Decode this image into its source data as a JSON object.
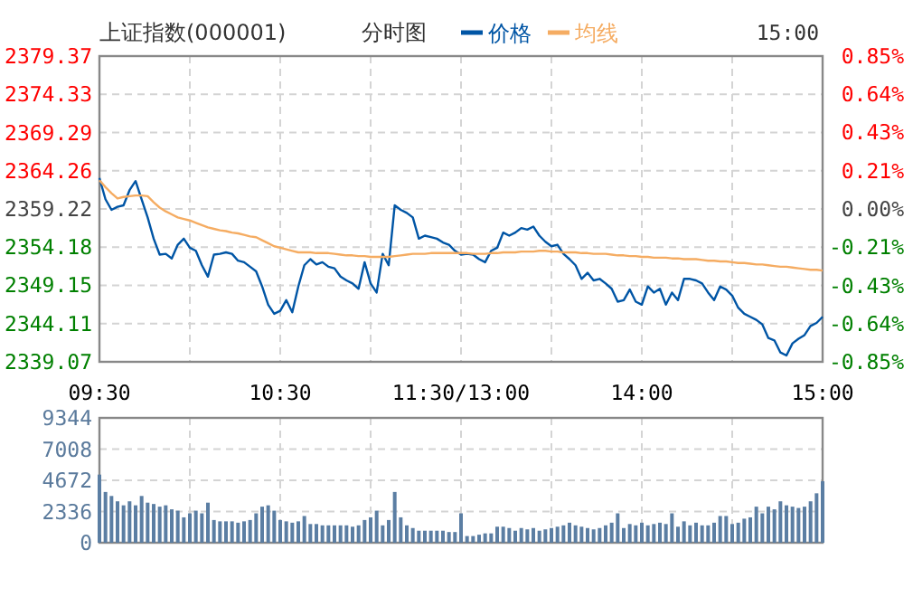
{
  "chart_data": [
    {
      "type": "line",
      "title": "上证指数(000001)",
      "subtitle": "分时图",
      "annotations": [
        "15:00"
      ],
      "legend": "top",
      "grid": true,
      "categories": [
        "09:30",
        null,
        null,
        null,
        null,
        null,
        null,
        null,
        null,
        null,
        null,
        null,
        null,
        null,
        null,
        null,
        null,
        null,
        null,
        null,
        null,
        null,
        null,
        null,
        null,
        null,
        null,
        null,
        null,
        null,
        "10:30",
        null,
        null,
        null,
        null,
        null,
        null,
        null,
        null,
        null,
        null,
        null,
        null,
        null,
        null,
        null,
        null,
        null,
        null,
        null,
        null,
        null,
        null,
        null,
        null,
        null,
        null,
        null,
        null,
        null,
        "11:30/13:00",
        null,
        null,
        null,
        null,
        null,
        null,
        null,
        null,
        null,
        null,
        null,
        null,
        null,
        null,
        null,
        null,
        null,
        null,
        null,
        null,
        null,
        null,
        null,
        null,
        null,
        null,
        null,
        null,
        null,
        "14:00",
        null,
        null,
        null,
        null,
        null,
        null,
        null,
        null,
        null,
        null,
        null,
        null,
        null,
        null,
        null,
        null,
        null,
        null,
        null,
        null,
        null,
        null,
        null,
        null,
        null,
        null,
        null,
        null,
        null,
        "15:00"
      ],
      "ylim": [
        2339.07,
        2379.37
      ],
      "yticks": [
        2339.07,
        2344.11,
        2349.15,
        2354.18,
        2359.22,
        2364.26,
        2369.29,
        2374.33,
        2379.37
      ],
      "y2lim": [
        -0.85,
        0.85
      ],
      "y2ticks": [
        {
          "value": -0.85,
          "label": "-0.85%"
        },
        {
          "value": -0.64,
          "label": "-0.64%"
        },
        {
          "value": -0.43,
          "label": "-0.43%"
        },
        {
          "value": -0.21,
          "label": "-0.21%"
        },
        {
          "value": 0,
          "label": "0.00%"
        },
        {
          "value": 0.21,
          "label": "0.21%"
        },
        {
          "value": 0.43,
          "label": "0.43%"
        },
        {
          "value": 0.64,
          "label": "0.64%"
        },
        {
          "value": 0.85,
          "label": "0.85%"
        }
      ],
      "series": [
        {
          "name": "价格",
          "color": "#0055a5",
          "values": [
            2363.3,
            2360.5,
            2359.1,
            2359.5,
            2359.7,
            2361.7,
            2362.9,
            2360.5,
            2358.1,
            2355.3,
            2353.2,
            2353.3,
            2352.7,
            2354.5,
            2355.3,
            2354.1,
            2353.7,
            2351.8,
            2350.3,
            2353.2,
            2353.3,
            2353.5,
            2353.3,
            2352.4,
            2352.2,
            2351.6,
            2351.0,
            2349.0,
            2346.6,
            2345.4,
            2345.8,
            2347.2,
            2345.6,
            2349.0,
            2351.8,
            2352.6,
            2351.9,
            2352.2,
            2351.6,
            2351.4,
            2350.3,
            2349.8,
            2349.4,
            2348.7,
            2352.2,
            2349.4,
            2348.2,
            2353.3,
            2351.8,
            2359.7,
            2359.1,
            2358.7,
            2358.1,
            2355.3,
            2355.7,
            2355.5,
            2355.3,
            2354.8,
            2354.5,
            2353.7,
            2353.2,
            2353.3,
            2353.2,
            2352.6,
            2352.2,
            2353.7,
            2354.1,
            2356.1,
            2355.7,
            2356.1,
            2356.7,
            2356.5,
            2356.9,
            2355.7,
            2354.9,
            2354.3,
            2354.5,
            2353.3,
            2352.6,
            2351.8,
            2350.0,
            2350.8,
            2349.8,
            2350.0,
            2349.4,
            2348.7,
            2347.0,
            2347.2,
            2348.6,
            2347.0,
            2346.6,
            2349.0,
            2348.2,
            2348.7,
            2346.6,
            2348.2,
            2347.2,
            2350.0,
            2350.0,
            2349.8,
            2349.4,
            2348.2,
            2347.2,
            2349.0,
            2348.6,
            2347.8,
            2346.2,
            2345.4,
            2345.0,
            2344.6,
            2344.0,
            2342.2,
            2341.9,
            2340.3,
            2339.9,
            2341.5,
            2342.1,
            2342.6,
            2343.8,
            2344.2,
            2345.0
          ]
        },
        {
          "name": "均线",
          "color": "#f5ac62",
          "values": [
            2363.0,
            2362.1,
            2361.3,
            2360.6,
            2360.8,
            2360.9,
            2361.0,
            2361.0,
            2360.9,
            2360.1,
            2359.4,
            2358.9,
            2358.5,
            2358.1,
            2357.9,
            2357.7,
            2357.4,
            2357.1,
            2356.8,
            2356.6,
            2356.4,
            2356.3,
            2356.1,
            2356.0,
            2355.8,
            2355.6,
            2355.5,
            2355.1,
            2354.7,
            2354.3,
            2354.1,
            2353.9,
            2353.7,
            2353.5,
            2353.5,
            2353.5,
            2353.4,
            2353.4,
            2353.4,
            2353.3,
            2353.2,
            2353.1,
            2353.1,
            2353.0,
            2353.0,
            2352.9,
            2352.9,
            2352.9,
            2352.9,
            2353.0,
            2353.1,
            2353.2,
            2353.3,
            2353.3,
            2353.3,
            2353.4,
            2353.4,
            2353.4,
            2353.4,
            2353.4,
            2353.4,
            2353.4,
            2353.3,
            2353.3,
            2353.3,
            2353.4,
            2353.4,
            2353.5,
            2353.5,
            2353.5,
            2353.6,
            2353.6,
            2353.6,
            2353.7,
            2353.7,
            2353.6,
            2353.6,
            2353.5,
            2353.5,
            2353.5,
            2353.4,
            2353.4,
            2353.3,
            2353.3,
            2353.3,
            2353.2,
            2353.1,
            2353.1,
            2353.0,
            2353.0,
            2352.9,
            2352.9,
            2352.8,
            2352.8,
            2352.8,
            2352.7,
            2352.7,
            2352.6,
            2352.6,
            2352.6,
            2352.5,
            2352.4,
            2352.4,
            2352.3,
            2352.3,
            2352.2,
            2352.1,
            2352.1,
            2352.0,
            2351.9,
            2351.9,
            2351.8,
            2351.7,
            2351.6,
            2351.6,
            2351.5,
            2351.4,
            2351.3,
            2351.2,
            2351.2,
            2351.1
          ]
        }
      ]
    },
    {
      "type": "bar",
      "grid": true,
      "tick_labels": "y",
      "color": "#5b7ea3",
      "categories": [
        null,
        null,
        null,
        null,
        null,
        null,
        null,
        null,
        null,
        null,
        null,
        null,
        null,
        null,
        null,
        null,
        null,
        null,
        null,
        null,
        null,
        null,
        null,
        null,
        null,
        null,
        null,
        null,
        null,
        null,
        null,
        null,
        null,
        null,
        null,
        null,
        null,
        null,
        null,
        null,
        null,
        null,
        null,
        null,
        null,
        null,
        null,
        null,
        null,
        null,
        null,
        null,
        null,
        null,
        null,
        null,
        null,
        null,
        null,
        null,
        null,
        null,
        null,
        null,
        null,
        null,
        null,
        null,
        null,
        null,
        null,
        null,
        null,
        null,
        null,
        null,
        null,
        null,
        null,
        null,
        null,
        null,
        null,
        null,
        null,
        null,
        null,
        null,
        null,
        null,
        null,
        null,
        null,
        null,
        null,
        null,
        null,
        null,
        null,
        null,
        null,
        null,
        null,
        null,
        null,
        null,
        null,
        null,
        null,
        null,
        null,
        null,
        null,
        null,
        null,
        null,
        null,
        null,
        null,
        null,
        null
      ],
      "ylim": [
        0,
        9344
      ],
      "yticks": [
        0,
        2336,
        4672,
        7008,
        9344
      ],
      "values": [
        5100,
        3800,
        3500,
        3100,
        2800,
        3100,
        2800,
        3500,
        3000,
        2900,
        2700,
        2800,
        2500,
        2400,
        1900,
        2200,
        2400,
        2200,
        3000,
        1700,
        1600,
        1600,
        1600,
        1500,
        1600,
        1700,
        2200,
        2700,
        2800,
        2400,
        1700,
        1600,
        1500,
        1600,
        2000,
        1400,
        1400,
        1300,
        1300,
        1300,
        1300,
        1300,
        1200,
        1300,
        1700,
        1900,
        2400,
        1300,
        1700,
        3800,
        1900,
        1300,
        1100,
        900,
        900,
        900,
        900,
        900,
        800,
        800,
        2200,
        500,
        500,
        600,
        700,
        700,
        1200,
        1200,
        1100,
        900,
        1100,
        1000,
        1100,
        900,
        1000,
        1100,
        1200,
        1300,
        1500,
        1300,
        1200,
        1100,
        1000,
        1100,
        1300,
        1500,
        2200,
        1100,
        1400,
        1300,
        1500,
        1300,
        1400,
        1500,
        1400,
        2200,
        1200,
        1600,
        1300,
        1500,
        1300,
        1300,
        1500,
        2000,
        2000,
        1400,
        1500,
        1800,
        1900,
        2700,
        2200,
        2700,
        2500,
        3100,
        2800,
        2700,
        2600,
        2700,
        3100,
        3700,
        4600
      ]
    }
  ]
}
